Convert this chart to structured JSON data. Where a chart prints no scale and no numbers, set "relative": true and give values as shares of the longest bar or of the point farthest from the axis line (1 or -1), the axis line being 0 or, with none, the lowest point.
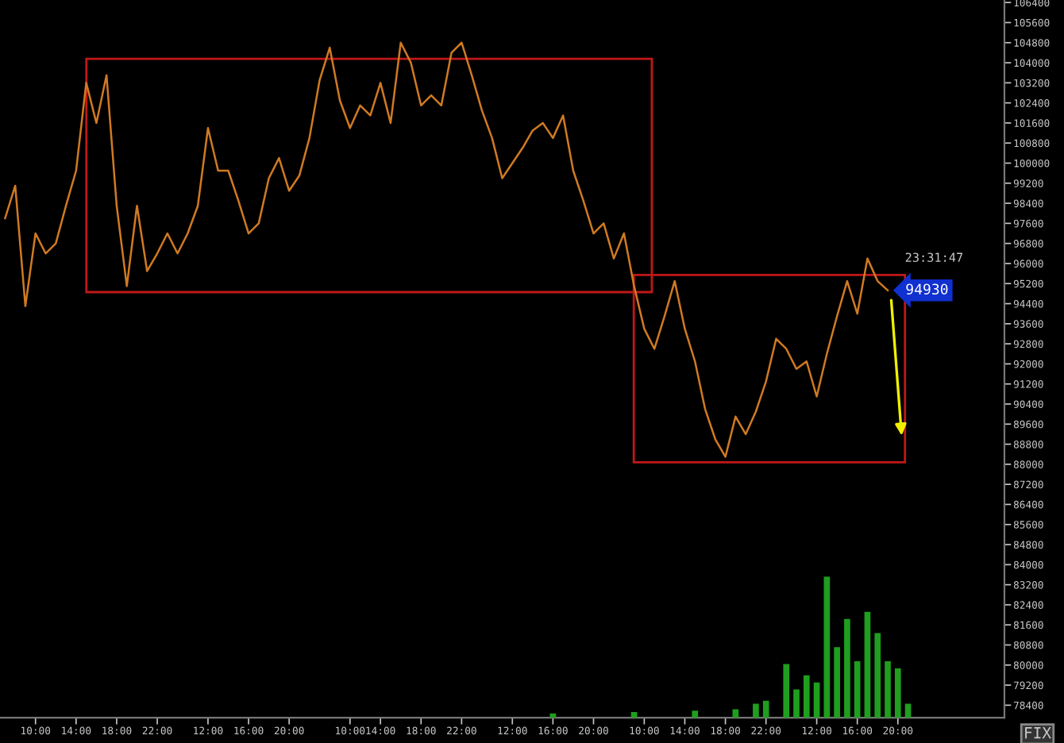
{
  "chart_data": [
    {
      "type": "line",
      "color": "#d07a22",
      "marker": "none",
      "line_style": "solid",
      "grid": false,
      "legend": false,
      "categories": [
        null,
        null,
        null,
        "10:00",
        null,
        null,
        null,
        "14:00",
        null,
        null,
        null,
        "18:00",
        null,
        null,
        null,
        "22:00",
        null,
        null,
        null,
        null,
        "12:00",
        null,
        null,
        null,
        "16:00",
        null,
        null,
        null,
        "20:00",
        null,
        null,
        null,
        null,
        null,
        "10:00",
        null,
        null,
        "14:00",
        null,
        null,
        null,
        "18:00",
        null,
        null,
        null,
        "22:00",
        null,
        null,
        null,
        null,
        "12:00",
        null,
        null,
        null,
        "16:00",
        null,
        null,
        null,
        "20:00",
        null,
        null,
        null,
        null,
        "10:00",
        null,
        null,
        null,
        "14:00",
        null,
        null,
        null,
        "18:00",
        null,
        null,
        null,
        "22:00",
        null,
        null,
        null,
        null,
        "12:00",
        null,
        null,
        null,
        "16:00",
        null,
        null,
        null,
        "20:00",
        null,
        null,
        null,
        null,
        null,
        null,
        null,
        null,
        null,
        null
      ],
      "values": [
        97800,
        99100,
        94300,
        97200,
        96400,
        96800,
        98300,
        99700,
        103200,
        101600,
        103500,
        98300,
        95100,
        98300,
        95700,
        96400,
        97200,
        96400,
        97200,
        98300,
        101400,
        99700,
        99700,
        98500,
        97200,
        97600,
        99400,
        100200,
        98900,
        99500,
        101000,
        103300,
        104600,
        102500,
        101400,
        102300,
        101900,
        103200,
        101600,
        104800,
        104000,
        102300,
        102700,
        102300,
        104400,
        104800,
        103500,
        102100,
        101000,
        99400,
        100000,
        100600,
        101300,
        101600,
        101000,
        101900,
        99700,
        98500,
        97200,
        97600,
        96200,
        97200,
        95100,
        93400,
        92600,
        93900,
        95300,
        93400,
        92100,
        90200,
        89000,
        88300,
        89900,
        89200,
        90100,
        91300,
        93000,
        92600,
        91800,
        92100,
        90700,
        92400,
        93900,
        95300,
        94000,
        96200,
        95300,
        94930,
        null,
        null,
        null,
        null,
        null,
        null,
        null,
        null,
        null,
        null,
        null
      ],
      "ylim": [
        77900,
        106500
      ],
      "yticks": [
        78400,
        79200,
        80000,
        80800,
        81600,
        82400,
        83200,
        84000,
        84800,
        85600,
        86400,
        87200,
        88000,
        88800,
        89600,
        90400,
        91200,
        92000,
        92800,
        93600,
        94400,
        95200,
        96000,
        96800,
        97600,
        98400,
        99200,
        100000,
        100800,
        101600,
        102400,
        103200,
        104000,
        104800,
        105600,
        106400
      ],
      "annotations": [
        "94930",
        "23:31:47",
        "FIX"
      ]
    },
    {
      "type": "bar",
      "relative": true,
      "color": "#1f9e1f",
      "categories": [
        null,
        null,
        null,
        null,
        null,
        null,
        null,
        null,
        null,
        null,
        null,
        null,
        null,
        null,
        null,
        null,
        null,
        null,
        null,
        null,
        null,
        null,
        null,
        null,
        null,
        null,
        null,
        null,
        null,
        null,
        null,
        null,
        null,
        null,
        null,
        null,
        null,
        null,
        null,
        null,
        null,
        null,
        null,
        null,
        null,
        null,
        null,
        null,
        null,
        null,
        null,
        null,
        null,
        null,
        null,
        null,
        null,
        null,
        null,
        null,
        null,
        null,
        null,
        null,
        null,
        null,
        null,
        null,
        null,
        null,
        null,
        null,
        null,
        null,
        null,
        null,
        null,
        null,
        null,
        null,
        null,
        null,
        null,
        null,
        null,
        null,
        null,
        null,
        null,
        null,
        null,
        null,
        null,
        null,
        null,
        null,
        null,
        null,
        null
      ],
      "values": [
        null,
        null,
        null,
        null,
        null,
        null,
        null,
        null,
        null,
        null,
        null,
        null,
        null,
        null,
        null,
        null,
        null,
        null,
        null,
        null,
        null,
        null,
        null,
        null,
        null,
        null,
        null,
        null,
        null,
        null,
        null,
        null,
        null,
        null,
        null,
        null,
        null,
        null,
        null,
        null,
        null,
        null,
        null,
        null,
        null,
        null,
        null,
        null,
        null,
        null,
        null,
        null,
        null,
        null,
        0.03,
        null,
        null,
        null,
        null,
        null,
        null,
        null,
        0.04,
        null,
        null,
        null,
        null,
        null,
        0.05,
        null,
        null,
        null,
        0.06,
        null,
        0.1,
        0.12,
        null,
        0.38,
        0.2,
        0.3,
        0.25,
        1.0,
        0.5,
        0.7,
        0.4,
        0.75,
        0.6,
        0.4,
        0.35,
        0.1,
        null,
        null,
        null,
        null,
        null,
        null,
        null,
        null,
        null
      ]
    }
  ]
}
